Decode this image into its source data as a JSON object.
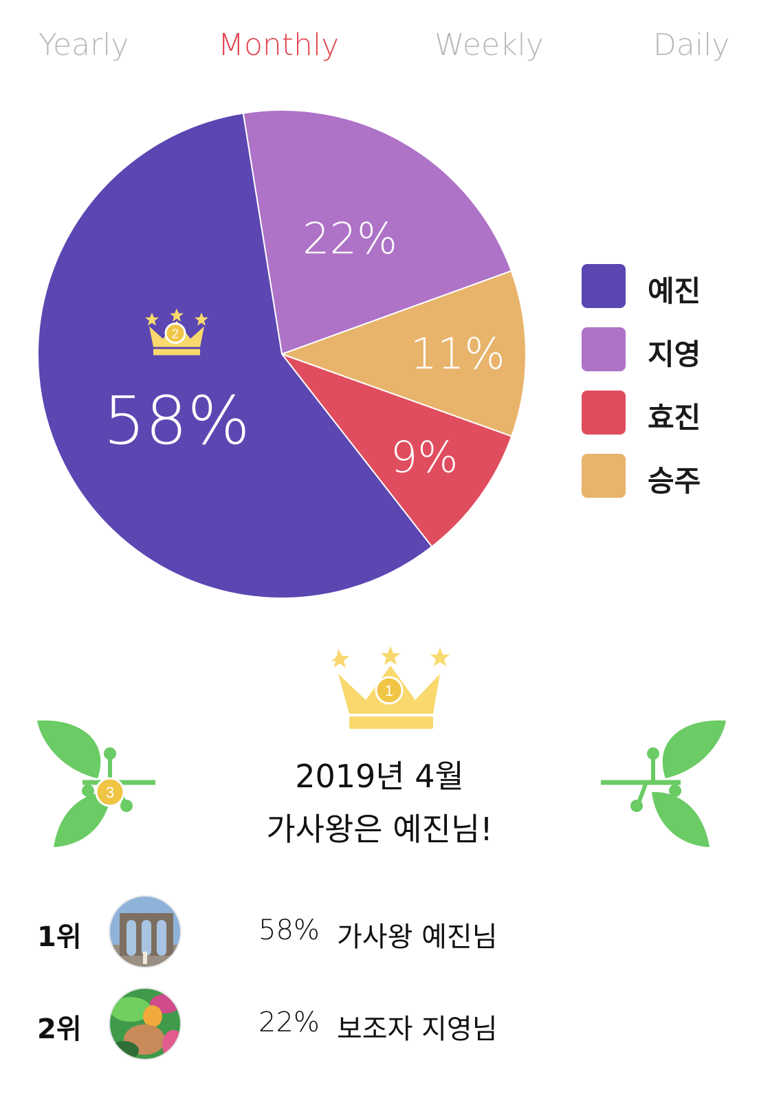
{
  "tabs": [
    {
      "label": "Yearly",
      "active": false
    },
    {
      "label": "Monthly",
      "active": true
    },
    {
      "label": "Weekly",
      "active": false
    },
    {
      "label": "Daily",
      "active": false
    }
  ],
  "colors": {
    "active_tab": "#e0444f",
    "inactive_tab": "#b8b8b8",
    "crown": "#f9d96e",
    "badge": "#f0c445",
    "laurel": "#6bcb65"
  },
  "chart_data": {
    "type": "pie",
    "slices": [
      {
        "name": "예진",
        "value": 58,
        "label": "58%",
        "color": "#5b46b2"
      },
      {
        "name": "지영",
        "value": 22,
        "label": "22%",
        "color": "#ae72c7"
      },
      {
        "name": "승주",
        "value": 11,
        "label": "11%",
        "color": "#e8b46c"
      },
      {
        "name": "효진",
        "value": 9,
        "label": "9%",
        "color": "#e04d5e"
      }
    ],
    "crown_slice": "예진",
    "crown_badge": "2"
  },
  "legend": [
    {
      "label": "예진",
      "color": "#5b46b2"
    },
    {
      "label": "지영",
      "color": "#ae72c7"
    },
    {
      "label": "효진",
      "color": "#e04d5e"
    },
    {
      "label": "승주",
      "color": "#e8b46c"
    }
  ],
  "winner": {
    "crown_badge": "1",
    "laurel_badge": "3",
    "line1": "2019년 4월",
    "line2": "가사왕은 예진님!"
  },
  "ranking": [
    {
      "rank": "1위",
      "percent": "58%",
      "name": "가사왕 예진님",
      "avatar": "aqueduct-photo"
    },
    {
      "rank": "2위",
      "percent": "22%",
      "name": "보조자 지영님",
      "avatar": "tropical-photo"
    }
  ]
}
